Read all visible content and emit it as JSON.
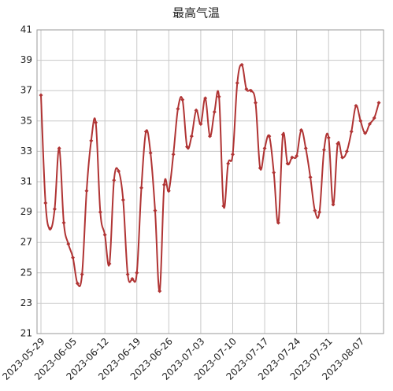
{
  "chart_data": {
    "type": "line",
    "title": "最高气温",
    "categories": [
      "2023-05-29",
      null,
      null,
      null,
      null,
      null,
      null,
      "2023-06-05",
      null,
      null,
      null,
      null,
      null,
      null,
      "2023-06-12",
      null,
      null,
      null,
      null,
      null,
      null,
      "2023-06-19",
      null,
      null,
      null,
      null,
      null,
      null,
      "2023-06-26",
      null,
      null,
      null,
      null,
      null,
      null,
      "2023-07-03",
      null,
      null,
      null,
      null,
      null,
      null,
      "2023-07-10",
      null,
      null,
      null,
      null,
      null,
      null,
      "2023-07-17",
      null,
      null,
      null,
      null,
      null,
      null,
      "2023-07-24",
      null,
      null,
      null,
      null,
      null,
      null,
      "2023-07-31",
      null,
      null,
      null,
      null,
      null,
      null,
      "2023-08-07",
      null,
      null,
      null,
      null
    ],
    "series": [
      {
        "color": "#b03434",
        "values": [
          36.7,
          29.6,
          27.9,
          29.2,
          33.2,
          28.3,
          26.9,
          26.0,
          24.3,
          24.9,
          30.4,
          33.7,
          34.9,
          29.0,
          27.5,
          25.6,
          31.1,
          31.7,
          29.8,
          24.9,
          24.6,
          25.0,
          30.6,
          34.3,
          32.9,
          29.1,
          23.8,
          30.8,
          30.4,
          32.8,
          35.8,
          36.4,
          33.3,
          34.0,
          35.7,
          34.8,
          36.5,
          34.0,
          35.6,
          36.6,
          29.4,
          32.2,
          32.8,
          37.5,
          38.7,
          37.1,
          37.0,
          36.2,
          31.9,
          33.2,
          34.0,
          31.6,
          28.3,
          34.1,
          32.2,
          32.6,
          32.7,
          34.4,
          33.2,
          31.3,
          29.1,
          29.0,
          33.1,
          33.9,
          29.5,
          33.5,
          32.6,
          33.0,
          34.3,
          36.0,
          35.0,
          34.2,
          34.8,
          35.2,
          36.2
        ]
      }
    ],
    "ylim": [
      21,
      41
    ],
    "yticks": [
      21,
      23,
      25,
      27,
      29,
      31,
      33,
      35,
      37,
      39,
      41
    ],
    "grid": true
  }
}
